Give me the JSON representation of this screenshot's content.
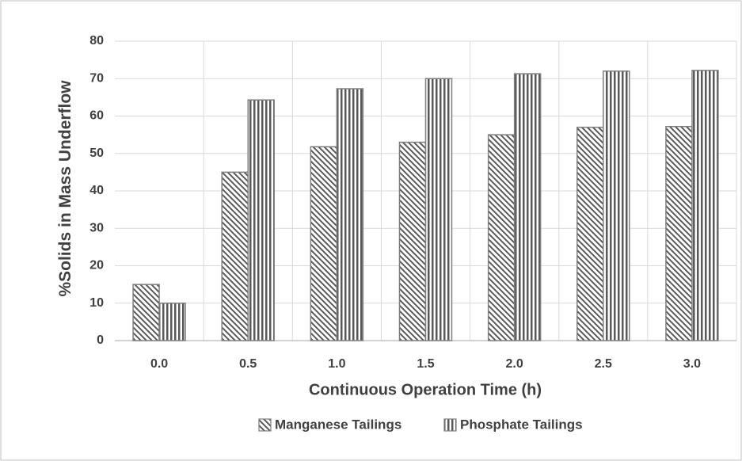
{
  "chart_data": {
    "type": "bar",
    "xlabel": "Continuous Operation Time (h)",
    "ylabel": "%Solids in Mass Underflow",
    "categories": [
      "0.0",
      "0.5",
      "1.0",
      "1.5",
      "2.0",
      "2.5",
      "3.0"
    ],
    "series": [
      {
        "name": "Manganese Tailings",
        "color": "#595959",
        "hatch": "diagonal",
        "values": [
          15,
          45,
          51.8,
          53,
          55,
          57,
          57.2
        ]
      },
      {
        "name": "Phosphate Tailings",
        "color": "#595959",
        "hatch": "vertical",
        "values": [
          10,
          64.3,
          67.3,
          70,
          71.3,
          72,
          72.2
        ]
      }
    ],
    "ylim": [
      0,
      80
    ],
    "yticks": [
      0,
      10,
      20,
      30,
      40,
      50,
      60,
      70,
      80
    ],
    "grid": true,
    "legend": "bottom"
  }
}
